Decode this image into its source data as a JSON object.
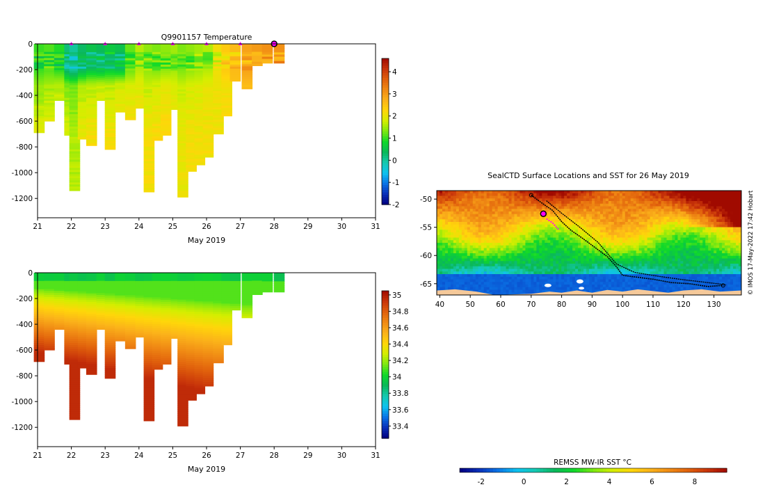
{
  "chart_data": [
    {
      "type": "heatmap",
      "title": "Q9901157  Temperature",
      "xlabel": "May 2019",
      "ylabel": "",
      "xlim": [
        21,
        31
      ],
      "ylim": [
        -1350,
        0
      ],
      "x_ticks": [
        "21",
        "22",
        "23",
        "24",
        "25",
        "26",
        "27",
        "28",
        "29",
        "30",
        "31"
      ],
      "y_ticks": [
        "0",
        "-200",
        "-400",
        "-600",
        "-800",
        "-1000",
        "-1200"
      ],
      "colorbar": {
        "min": -2,
        "max": 4.6,
        "ticks": [
          "4",
          "3",
          "2",
          "1",
          "0",
          "-1",
          "-2"
        ]
      },
      "profiles": [
        {
          "x": 21.05,
          "depth": 690,
          "top": 1.0,
          "mid": 1.4,
          "deep": 1.9
        },
        {
          "x": 21.35,
          "depth": 600,
          "top": 1.1,
          "mid": 1.5,
          "deep": 2.0
        },
        {
          "x": 21.65,
          "depth": 440,
          "top": 0.9,
          "mid": 1.6,
          "deep": 2.0
        },
        {
          "x": 21.95,
          "depth": 710,
          "top": 0.2,
          "mid": 1.3,
          "deep": 1.9
        },
        {
          "x": 22.1,
          "depth": 1140,
          "top": 0.0,
          "mid": 1.2,
          "deep": 1.6
        },
        {
          "x": 22.35,
          "depth": 740,
          "top": 0.3,
          "mid": 1.5,
          "deep": 2.0
        },
        {
          "x": 22.6,
          "depth": 790,
          "top": 0.5,
          "mid": 1.6,
          "deep": 2.1
        },
        {
          "x": 22.9,
          "depth": 440,
          "top": 0.4,
          "mid": 1.7,
          "deep": 2.1
        },
        {
          "x": 23.15,
          "depth": 820,
          "top": 0.6,
          "mid": 1.6,
          "deep": 2.1
        },
        {
          "x": 23.45,
          "depth": 530,
          "top": 0.5,
          "mid": 1.8,
          "deep": 2.1
        },
        {
          "x": 23.75,
          "depth": 590,
          "top": 1.2,
          "mid": 1.8,
          "deep": 2.2
        },
        {
          "x": 24.05,
          "depth": 500,
          "top": 1.6,
          "mid": 1.9,
          "deep": 2.2
        },
        {
          "x": 24.3,
          "depth": 1150,
          "top": 1.4,
          "mid": 1.7,
          "deep": 2.1
        },
        {
          "x": 24.55,
          "depth": 750,
          "top": 1.3,
          "mid": 1.8,
          "deep": 2.2
        },
        {
          "x": 24.8,
          "depth": 710,
          "top": 1.4,
          "mid": 1.9,
          "deep": 2.3
        },
        {
          "x": 25.1,
          "depth": 510,
          "top": 1.5,
          "mid": 1.8,
          "deep": 2.1
        },
        {
          "x": 25.3,
          "depth": 1190,
          "top": 1.3,
          "mid": 1.7,
          "deep": 2.0
        },
        {
          "x": 25.55,
          "depth": 990,
          "top": 1.4,
          "mid": 1.8,
          "deep": 2.1
        },
        {
          "x": 25.8,
          "depth": 940,
          "top": 1.5,
          "mid": 1.8,
          "deep": 2.1
        },
        {
          "x": 26.05,
          "depth": 880,
          "top": 1.6,
          "mid": 1.9,
          "deep": 2.1
        },
        {
          "x": 26.35,
          "depth": 700,
          "top": 2.1,
          "mid": 2.0,
          "deep": 2.1
        },
        {
          "x": 26.6,
          "depth": 560,
          "top": 2.4,
          "mid": 2.1,
          "deep": 2.2
        },
        {
          "x": 26.85,
          "depth": 290,
          "top": 2.6,
          "mid": 2.5,
          "deep": 2.5
        },
        {
          "x": 27.2,
          "depth": 350,
          "top": 2.9,
          "mid": 2.6,
          "deep": 2.6
        },
        {
          "x": 27.5,
          "depth": 170,
          "top": 3.0,
          "mid": 2.9,
          "deep": 2.8
        },
        {
          "x": 27.8,
          "depth": 150,
          "top": 3.1,
          "mid": 3.0,
          "deep": 2.9
        },
        {
          "x": 28.15,
          "depth": 150,
          "top": 3.1,
          "mid": 3.0,
          "deep": 3.0
        }
      ],
      "surface_markers": [
        22,
        23,
        24,
        25,
        26,
        27
      ],
      "current_marker": 28
    },
    {
      "type": "heatmap",
      "title": "",
      "xlabel": "May 2019",
      "ylabel": "",
      "xlim": [
        21,
        31
      ],
      "ylim": [
        -1350,
        0
      ],
      "x_ticks": [
        "21",
        "22",
        "23",
        "24",
        "25",
        "26",
        "27",
        "28",
        "29",
        "30",
        "31"
      ],
      "y_ticks": [
        "0",
        "-200",
        "-400",
        "-600",
        "-800",
        "-1000",
        "-1200"
      ],
      "colorbar": {
        "min": 33.25,
        "max": 35.05,
        "ticks": [
          "35",
          "34.8",
          "34.6",
          "34.4",
          "34.2",
          "34",
          "33.8",
          "33.6",
          "33.4"
        ]
      },
      "top_value": 34.1,
      "deep_value": 34.95
    },
    {
      "type": "heatmap",
      "title": "SealCTD Surface Locations and SST for 26 May 2019",
      "xlabel": "",
      "ylabel": "",
      "xlim": [
        39,
        139
      ],
      "ylim": [
        -67,
        -48.5
      ],
      "x_ticks": [
        "40",
        "50",
        "60",
        "70",
        "80",
        "90",
        "100",
        "110",
        "120",
        "130"
      ],
      "y_ticks": [
        "-50",
        "-55",
        "-60",
        "-65"
      ],
      "colorbar": {
        "label": "REMSS MW-IR SST °C",
        "min": -3,
        "max": 9.5,
        "ticks": [
          "-2",
          "0",
          "2",
          "4",
          "6",
          "8"
        ]
      },
      "track": [
        [
          70,
          -49.3
        ],
        [
          73,
          -50.5
        ],
        [
          77,
          -52
        ],
        [
          80,
          -54
        ],
        [
          83,
          -55.5
        ],
        [
          87,
          -57
        ],
        [
          91,
          -58.6
        ],
        [
          95,
          -60.2
        ],
        [
          98,
          -62
        ],
        [
          100,
          -63.5
        ],
        [
          104,
          -63.8
        ],
        [
          110,
          -64.2
        ],
        [
          116,
          -64.8
        ],
        [
          122,
          -65
        ],
        [
          128,
          -65.5
        ],
        [
          133,
          -65.3
        ]
      ],
      "track2": [
        [
          75,
          -50.3
        ],
        [
          80,
          -52.5
        ],
        [
          86,
          -55
        ],
        [
          92,
          -57.7
        ],
        [
          98,
          -61.5
        ],
        [
          104,
          -63
        ],
        [
          112,
          -63.7
        ],
        [
          120,
          -64.3
        ],
        [
          128,
          -64.8
        ],
        [
          134,
          -65.2
        ]
      ],
      "recent_track": [
        [
          75,
          -53.5
        ],
        [
          77,
          -54.2
        ],
        [
          79,
          -55.4
        ]
      ],
      "current_position": [
        74,
        -52.6
      ],
      "credit": "© IMOS 17-May-2022 17:42 Hobart"
    }
  ],
  "colors": {
    "colormap": [
      "#00007f",
      "#0a2fb8",
      "#0a73e6",
      "#0ec3f0",
      "#15c9b0",
      "#0ab85a",
      "#0fd92a",
      "#7ce811",
      "#d4ee00",
      "#ffd60a",
      "#fbb21a",
      "#f08a14",
      "#e0600c",
      "#c8340a",
      "#a00a00"
    ],
    "marker": "#ff00ff",
    "land": "#f5c99a",
    "track": "#000000"
  }
}
